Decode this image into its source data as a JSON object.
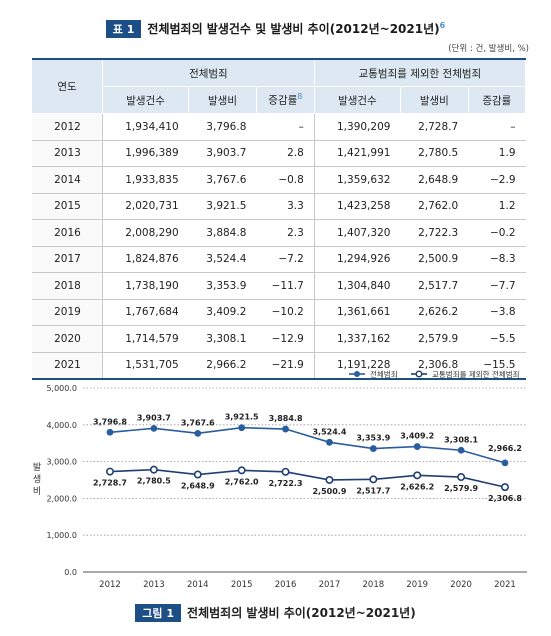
{
  "table": {
    "tag": "표 1",
    "title": "전체범죄의 발생건수 및 발생비 추이(2012년~2021년)",
    "title_note": "6",
    "unit": "(단위 : 건, 발생비, %)",
    "col_year": "연도",
    "group1": "전체범죄",
    "group2": "교통범죄를 제외한 전체범죄",
    "sub": [
      "발생건수",
      "발생비",
      "증감률",
      "발생건수",
      "발생비",
      "증감률"
    ],
    "sub_note": "8",
    "rows": [
      [
        "2012",
        "1,934,410",
        "3,796.8",
        "–",
        "1,390,209",
        "2,728.7",
        "–"
      ],
      [
        "2013",
        "1,996,389",
        "3,903.7",
        "2.8",
        "1,421,991",
        "2,780.5",
        "1.9"
      ],
      [
        "2014",
        "1,933,835",
        "3,767.6",
        "−0.8",
        "1,359,632",
        "2,648.9",
        "−2.9"
      ],
      [
        "2015",
        "2,020,731",
        "3,921.5",
        "3.3",
        "1,423,258",
        "2,762.0",
        "1.2"
      ],
      [
        "2016",
        "2,008,290",
        "3,884.8",
        "2.3",
        "1,407,320",
        "2,722.3",
        "−0.2"
      ],
      [
        "2017",
        "1,824,876",
        "3,524.4",
        "−7.2",
        "1,294,926",
        "2,500.9",
        "−8.3"
      ],
      [
        "2018",
        "1,738,190",
        "3,353.9",
        "−11.7",
        "1,304,840",
        "2,517.7",
        "−7.7"
      ],
      [
        "2019",
        "1,767,684",
        "3,409.2",
        "−10.2",
        "1,361,661",
        "2,626.2",
        "−3.8"
      ],
      [
        "2020",
        "1,714,579",
        "3,308.1",
        "−12.9",
        "1,337,162",
        "2,579.9",
        "−5.5"
      ],
      [
        "2021",
        "1,531,705",
        "2,966.2",
        "−21.9",
        "1,191,228",
        "2,306.8",
        "−15.5"
      ]
    ]
  },
  "figure": {
    "tag": "그림 1",
    "title": "전체범죄의 발생비 추이(2012년~2021년)"
  },
  "chart_data": {
    "type": "line",
    "x": [
      "2012",
      "2013",
      "2014",
      "2015",
      "2016",
      "2017",
      "2018",
      "2019",
      "2020",
      "2021"
    ],
    "ylabel": "발생비",
    "ylim": [
      0,
      5000
    ],
    "yticks": [
      "0.0",
      "1,000.0",
      "2,000.0",
      "3,000.0",
      "4,000.0",
      "5,000.0"
    ],
    "grid": "horizontal dotted",
    "legend": "top-right",
    "series": [
      {
        "name": "전체범죄",
        "color": "#2a5d9f",
        "marker": "filled",
        "values": [
          3796.8,
          3903.7,
          3767.6,
          3921.5,
          3884.8,
          3524.4,
          3353.9,
          3409.2,
          3308.1,
          2966.2
        ],
        "labels": [
          "3,796.8",
          "3,903.7",
          "3,767.6",
          "3,921.5",
          "3,884.8",
          "3,524.4",
          "3,353.9",
          "3,409.2",
          "3,308.1",
          "2,966.2"
        ]
      },
      {
        "name": "교통범죄를 제외한 전체범죄",
        "color": "#1f3f73",
        "marker": "hollow",
        "values": [
          2728.7,
          2780.5,
          2648.9,
          2762.0,
          2722.3,
          2500.9,
          2517.7,
          2626.2,
          2579.9,
          2306.8
        ],
        "labels": [
          "2,728.7",
          "2,780.5",
          "2,648.9",
          "2,762.0",
          "2,722.3",
          "2,500.9",
          "2,517.7",
          "2,626.2",
          "2,579.9",
          "2,306.8"
        ]
      }
    ]
  }
}
